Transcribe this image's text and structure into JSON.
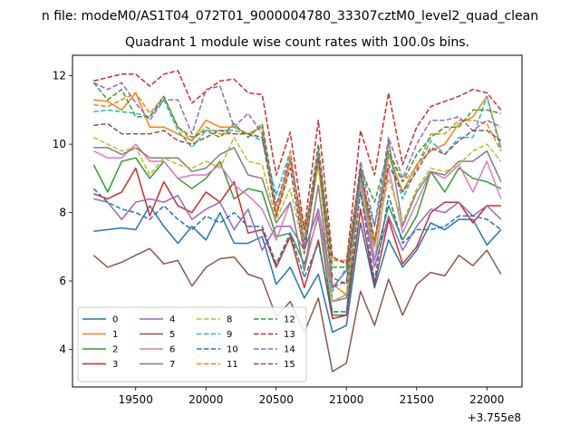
{
  "chart_data": {
    "type": "line",
    "suptitle": "n file: modeM0/AS1T04_072T01_9000004780_33307cztM0_level2_quad_clean",
    "title": "Quadrant 1 module wise count rates with 100.0s bins.",
    "xlabel": "",
    "ylabel": "",
    "x_offset_label": "+3.755e8",
    "xlim": [
      19050,
      22250
    ],
    "ylim": [
      2.9,
      12.6
    ],
    "xticks": [
      19500,
      20000,
      20500,
      21000,
      21500,
      22000
    ],
    "xtick_labels": [
      "19500",
      "20000",
      "20500",
      "21000",
      "21500",
      "22000"
    ],
    "yticks": [
      4,
      6,
      8,
      10,
      12
    ],
    "ytick_labels": [
      "4",
      "6",
      "8",
      "10",
      "12"
    ],
    "legend_position": "lower-left",
    "legend_columns": 4,
    "x": [
      19200,
      19300,
      19400,
      19500,
      19600,
      19700,
      19800,
      19900,
      20000,
      20100,
      20200,
      20300,
      20400,
      20500,
      20600,
      20700,
      20800,
      20900,
      21000,
      21100,
      21200,
      21300,
      21400,
      21500,
      21600,
      21700,
      21800,
      21900,
      22000,
      22100
    ],
    "series": [
      {
        "name": "0",
        "color": "#1f77b4",
        "dash": "solid",
        "values": [
          7.45,
          7.5,
          7.55,
          7.5,
          8.2,
          7.6,
          7.1,
          7.6,
          7.2,
          8.0,
          7.1,
          7.1,
          7.3,
          5.9,
          6.4,
          5.5,
          6.2,
          4.5,
          4.7,
          7.7,
          5.8,
          7.2,
          6.4,
          6.9,
          7.7,
          7.5,
          7.8,
          7.8,
          7.05,
          7.5
        ]
      },
      {
        "name": "1",
        "color": "#ff7f0e",
        "dash": "solid",
        "values": [
          11.3,
          11.25,
          11.0,
          11.5,
          10.5,
          10.5,
          10.3,
          10.1,
          10.7,
          10.5,
          10.5,
          10.3,
          10.5,
          7.9,
          9.5,
          7.5,
          9.4,
          5.9,
          5.6,
          9.0,
          7.0,
          9.7,
          8.6,
          9.4,
          9.8,
          10.0,
          10.6,
          10.8,
          11.4,
          9.9
        ]
      },
      {
        "name": "2",
        "color": "#2ca02c",
        "dash": "solid",
        "values": [
          9.4,
          8.6,
          9.5,
          9.6,
          9.0,
          9.5,
          9.0,
          8.7,
          9.0,
          9.5,
          8.4,
          8.7,
          8.6,
          7.3,
          7.4,
          6.5,
          7.9,
          5.0,
          5.0,
          9.3,
          6.6,
          8.2,
          7.2,
          7.9,
          9.2,
          8.6,
          9.3,
          9.0,
          8.9,
          8.7
        ]
      },
      {
        "name": "3",
        "color": "#d62728",
        "dash": "solid",
        "values": [
          8.55,
          8.4,
          8.6,
          9.3,
          7.9,
          8.9,
          8.2,
          8.0,
          8.6,
          8.3,
          8.9,
          7.4,
          7.5,
          6.4,
          7.3,
          5.8,
          7.2,
          4.9,
          5.0,
          8.1,
          5.9,
          7.8,
          6.5,
          7.0,
          8.0,
          8.3,
          8.3,
          7.7,
          8.2,
          8.2
        ]
      },
      {
        "name": "4",
        "color": "#9467bd",
        "dash": "solid",
        "values": [
          8.4,
          8.3,
          7.8,
          8.3,
          8.4,
          8.3,
          8.5,
          7.8,
          8.1,
          8.3,
          7.5,
          8.1,
          6.9,
          7.6,
          7.6,
          6.9,
          8.1,
          5.8,
          6.3,
          8.7,
          6.4,
          7.9,
          6.9,
          7.6,
          8.1,
          8.0,
          8.3,
          7.9,
          8.2,
          7.8
        ]
      },
      {
        "name": "5",
        "color": "#8c564b",
        "dash": "solid",
        "values": [
          6.75,
          6.4,
          6.55,
          6.75,
          6.95,
          6.5,
          6.6,
          5.85,
          6.4,
          6.65,
          6.7,
          6.2,
          6.05,
          4.95,
          5.4,
          4.5,
          5.5,
          3.35,
          3.6,
          5.7,
          4.7,
          6.05,
          5.0,
          5.9,
          6.25,
          6.15,
          6.75,
          6.45,
          6.9,
          6.2
        ]
      },
      {
        "name": "6",
        "color": "#e377c2",
        "dash": "solid",
        "values": [
          9.8,
          9.6,
          9.6,
          10.0,
          9.5,
          9.5,
          9.0,
          9.1,
          9.1,
          9.4,
          8.8,
          8.5,
          8.1,
          7.2,
          8.3,
          6.3,
          8.0,
          5.4,
          5.6,
          8.8,
          6.6,
          9.3,
          7.4,
          8.3,
          9.2,
          9.0,
          9.4,
          8.6,
          9.5,
          8.4
        ]
      },
      {
        "name": "7",
        "color": "#7f7f7f",
        "dash": "solid",
        "values": [
          9.9,
          9.9,
          9.7,
          9.9,
          9.6,
          9.6,
          9.6,
          9.2,
          9.3,
          9.7,
          9.9,
          9.1,
          9.0,
          7.7,
          8.3,
          6.3,
          8.8,
          5.4,
          5.5,
          9.1,
          7.0,
          10.1,
          7.6,
          8.6,
          9.2,
          9.1,
          9.5,
          9.5,
          9.8,
          8.9
        ]
      },
      {
        "name": "8",
        "color": "#bcbd22",
        "dash": "dashed",
        "values": [
          10.2,
          10.0,
          9.8,
          9.9,
          9.1,
          9.6,
          9.4,
          9.3,
          9.5,
          9.3,
          10.2,
          9.5,
          9.4,
          7.8,
          8.7,
          6.9,
          9.4,
          5.4,
          5.6,
          8.7,
          7.0,
          9.0,
          7.7,
          8.7,
          9.3,
          9.2,
          9.4,
          9.8,
          10.0,
          9.5
        ]
      },
      {
        "name": "9",
        "color": "#17becf",
        "dash": "dashed",
        "values": [
          10.95,
          11.0,
          10.95,
          10.9,
          10.8,
          11.3,
          10.4,
          9.9,
          10.4,
          10.4,
          10.4,
          10.3,
          10.1,
          8.5,
          9.8,
          7.0,
          9.7,
          5.7,
          6.4,
          9.0,
          7.6,
          9.7,
          8.4,
          9.3,
          10.1,
          9.7,
          10.2,
          10.2,
          11.4,
          9.8
        ]
      },
      {
        "name": "10",
        "color": "#1f77b4",
        "dash": "dashed",
        "values": [
          8.7,
          8.3,
          8.1,
          8.0,
          7.8,
          8.2,
          7.8,
          7.5,
          7.9,
          7.7,
          8.0,
          7.6,
          7.6,
          6.5,
          7.4,
          6.1,
          7.1,
          5.1,
          5.1,
          8.6,
          6.0,
          8.5,
          7.1,
          7.5,
          7.5,
          7.6,
          7.9,
          7.9,
          7.8,
          7.5
        ]
      },
      {
        "name": "11",
        "color": "#ff7f0e",
        "dash": "dashed",
        "values": [
          11.15,
          11.1,
          11.3,
          11.5,
          10.9,
          11.4,
          10.5,
          10.1,
          10.5,
          10.3,
          10.3,
          10.3,
          10.5,
          8.0,
          9.8,
          7.1,
          9.8,
          6.6,
          6.6,
          9.3,
          7.1,
          9.7,
          8.9,
          9.3,
          10.3,
          10.3,
          10.7,
          10.7,
          10.6,
          9.8
        ]
      },
      {
        "name": "12",
        "color": "#2ca02c",
        "dash": "dashed",
        "values": [
          11.8,
          11.3,
          11.6,
          10.8,
          10.8,
          11.4,
          10.5,
          10.2,
          10.4,
          10.2,
          10.6,
          10.2,
          10.6,
          8.2,
          9.6,
          7.2,
          10.0,
          6.4,
          6.4,
          9.3,
          8.3,
          9.8,
          8.9,
          9.7,
          10.2,
          10.5,
          10.5,
          11.0,
          11.0,
          10.9
        ]
      },
      {
        "name": "13",
        "color": "#d62728",
        "dash": "dashed",
        "values": [
          11.85,
          11.95,
          12.05,
          12.05,
          11.7,
          12.05,
          12.15,
          11.2,
          11.55,
          11.85,
          11.9,
          11.5,
          11.45,
          9.1,
          10.35,
          7.5,
          10.7,
          6.7,
          6.5,
          10.4,
          9.1,
          11.5,
          9.4,
          10.5,
          11.1,
          11.25,
          11.4,
          11.6,
          11.5,
          11.0
        ]
      },
      {
        "name": "14",
        "color": "#9467bd",
        "dash": "dashed",
        "values": [
          11.8,
          11.6,
          11.8,
          11.2,
          10.7,
          11.3,
          11.3,
          10.3,
          11.6,
          11.7,
          10.5,
          10.9,
          10.3,
          8.2,
          9.6,
          7.0,
          9.8,
          5.8,
          6.0,
          9.5,
          7.6,
          10.2,
          9.0,
          10.0,
          10.7,
          10.7,
          10.8,
          10.4,
          10.7,
          10.5
        ]
      },
      {
        "name": "15",
        "color": "#8c564b",
        "dash": "dashed",
        "values": [
          10.55,
          10.6,
          10.3,
          10.3,
          10.3,
          10.4,
          10.1,
          10.0,
          10.2,
          10.4,
          10.3,
          10.3,
          10.2,
          7.9,
          9.3,
          6.8,
          9.6,
          6.1,
          5.9,
          9.3,
          7.2,
          9.4,
          8.6,
          9.2,
          9.9,
          9.7,
          10.1,
          10.4,
          10.4,
          10.1
        ]
      }
    ]
  }
}
